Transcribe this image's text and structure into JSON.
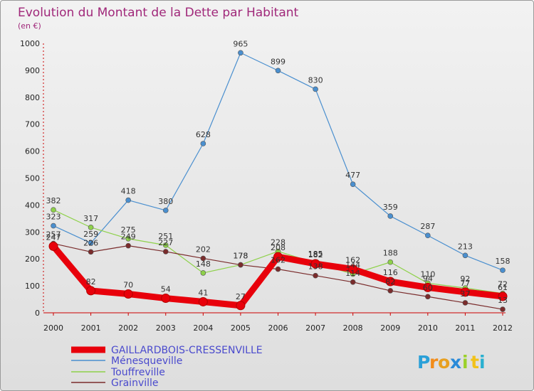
{
  "chart_data": {
    "type": "line",
    "title": "Evolution du Montant de la Dette par Habitant",
    "subtitle": "(en €)",
    "xlabel": "",
    "ylabel": "",
    "ylim": [
      0,
      1000
    ],
    "yticks": [
      0,
      100,
      200,
      300,
      400,
      500,
      600,
      700,
      800,
      900,
      1000
    ],
    "categories": [
      "2000",
      "2001",
      "2002",
      "2003",
      "2004",
      "2005",
      "2006",
      "2007",
      "2008",
      "2009",
      "2010",
      "2011",
      "2012"
    ],
    "grid": false,
    "legend_position": "bottom-left",
    "series": [
      {
        "name": "GAILLARDBOIS-CRESSENVILLE",
        "color": "#e8000b",
        "values": [
          247,
          82,
          70,
          54,
          41,
          27,
          208,
          182,
          162,
          116,
          94,
          77,
          61
        ]
      },
      {
        "name": "Ménesqueville",
        "color": "#4a8fcf",
        "values": [
          323,
          259,
          418,
          380,
          628,
          965,
          899,
          830,
          477,
          359,
          287,
          213,
          158
        ]
      },
      {
        "name": "Touffreville",
        "color": "#8ed14a",
        "values": [
          382,
          317,
          275,
          251,
          148,
          178,
          228,
          185,
          144,
          188,
          110,
          92,
          72
        ]
      },
      {
        "name": "Grainville",
        "color": "#7a2c2c",
        "values": [
          257,
          226,
          249,
          227,
          202,
          178,
          162,
          138,
          114,
          82,
          60,
          37,
          13
        ]
      }
    ]
  },
  "brand": {
    "letters": [
      "P",
      "r",
      "o",
      "x",
      "i",
      "t",
      "i"
    ]
  }
}
